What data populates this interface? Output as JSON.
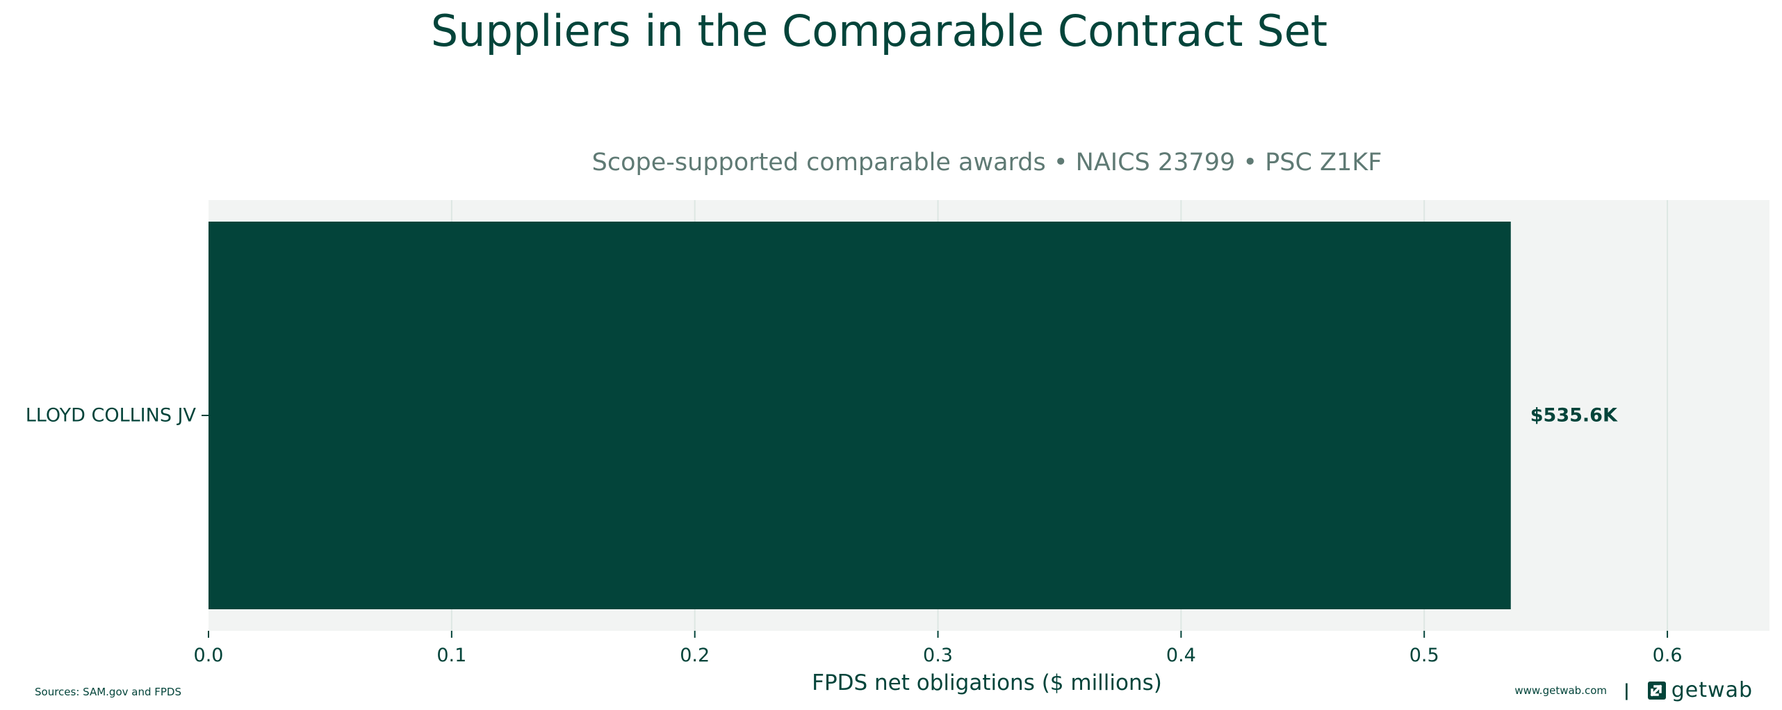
{
  "title": "Suppliers in the Comparable Contract Set",
  "footer": {
    "source": "Sources: SAM.gov and FPDS",
    "url": "www.getwab.com",
    "separator": "|",
    "brand": "getwab"
  },
  "colors": {
    "primary": "#03443a",
    "plot_background": "#f2f4f3",
    "grid": "#dde7e3",
    "subtitle": "#5f7a74"
  },
  "chart_data": {
    "type": "bar",
    "orientation": "horizontal",
    "subtitle": "Scope-supported comparable awards • NAICS 23799 • PSC Z1KF",
    "xlabel": "FPDS net obligations ($ millions)",
    "ylabel": "",
    "xlim": [
      0,
      0.642
    ],
    "xticks": [
      0.0,
      0.1,
      0.2,
      0.3,
      0.4,
      0.5,
      0.6
    ],
    "xtick_labels": [
      "0.0",
      "0.1",
      "0.2",
      "0.3",
      "0.4",
      "0.5",
      "0.6"
    ],
    "grid": "vertical",
    "categories": [
      "LLOYD COLLINS JV"
    ],
    "values": [
      0.5356
    ],
    "data_labels": [
      "$535.6K"
    ]
  }
}
